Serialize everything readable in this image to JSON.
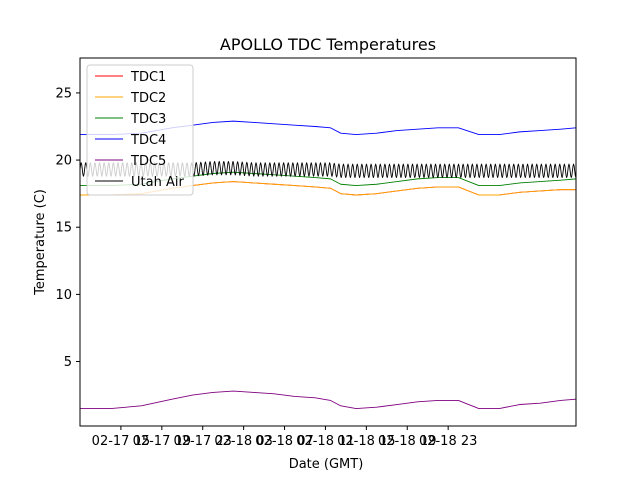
{
  "chart_data": {
    "type": "line",
    "title": "APOLLO TDC Temperatures",
    "xlabel": "Date (GMT)",
    "ylabel": "Temperature (C)",
    "xlim": [
      11.0,
      59.5
    ],
    "ylim": [
      0.2,
      27.6
    ],
    "x_unit": "hours since 02-17 00:00 GMT",
    "x_ticks": [
      {
        "value": 15,
        "label": "02-17 15"
      },
      {
        "value": 19,
        "label": "02-17 19"
      },
      {
        "value": 23,
        "label": "02-17 23"
      },
      {
        "value": 27,
        "label": "02-18 03"
      },
      {
        "value": 31,
        "label": "02-18 07"
      },
      {
        "value": 35,
        "label": "02-18 11"
      },
      {
        "value": 39,
        "label": "02-18 15"
      },
      {
        "value": 43,
        "label": "02-18 19"
      },
      {
        "value": 47,
        "label": "02-18 23"
      }
    ],
    "y_ticks": [
      {
        "value": 5,
        "label": "5"
      },
      {
        "value": 10,
        "label": "10"
      },
      {
        "value": 15,
        "label": "15"
      },
      {
        "value": 20,
        "label": "20"
      },
      {
        "value": 25,
        "label": "25"
      }
    ],
    "grid": false,
    "legend_position": "top-left",
    "series": [
      {
        "name": "TDC1",
        "color": "#ff0000",
        "x": [
          11,
          14,
          17,
          20,
          22,
          24,
          26,
          28,
          30,
          32,
          34,
          35.5,
          36.5,
          38,
          40,
          42,
          44,
          46,
          48,
          50,
          52,
          54,
          56,
          58,
          59.5
        ],
        "y": [
          17.4,
          17.4,
          17.5,
          17.9,
          18.1,
          18.3,
          18.4,
          18.3,
          18.2,
          18.1,
          18.0,
          17.9,
          17.5,
          17.4,
          17.5,
          17.7,
          17.9,
          18.0,
          18.0,
          17.4,
          17.4,
          17.6,
          17.7,
          17.8,
          17.8
        ]
      },
      {
        "name": "TDC2",
        "color": "#ffa500",
        "x": [
          11,
          14,
          17,
          20,
          22,
          24,
          26,
          28,
          30,
          32,
          34,
          35.5,
          36.5,
          38,
          40,
          42,
          44,
          46,
          48,
          50,
          52,
          54,
          56,
          58,
          59.5
        ],
        "y": [
          17.4,
          17.4,
          17.5,
          17.9,
          18.1,
          18.3,
          18.4,
          18.3,
          18.2,
          18.1,
          18.0,
          17.9,
          17.5,
          17.4,
          17.5,
          17.7,
          17.9,
          18.0,
          18.0,
          17.4,
          17.4,
          17.6,
          17.7,
          17.8,
          17.8
        ]
      },
      {
        "name": "TDC3",
        "color": "#008000",
        "x": [
          11,
          14,
          17,
          20,
          22,
          24,
          26,
          28,
          30,
          32,
          34,
          35.5,
          36.5,
          38,
          40,
          42,
          44,
          46,
          48,
          50,
          52,
          54,
          56,
          58,
          59.5
        ],
        "y": [
          18.1,
          18.1,
          18.2,
          18.6,
          18.8,
          19.0,
          19.1,
          19.0,
          18.9,
          18.8,
          18.7,
          18.6,
          18.2,
          18.1,
          18.2,
          18.4,
          18.6,
          18.7,
          18.7,
          18.1,
          18.1,
          18.3,
          18.4,
          18.5,
          18.6
        ]
      },
      {
        "name": "TDC4",
        "color": "#0000ff",
        "x": [
          11,
          14,
          17,
          20,
          22,
          24,
          26,
          28,
          30,
          32,
          34,
          35.5,
          36.5,
          38,
          40,
          42,
          44,
          46,
          48,
          50,
          52,
          54,
          56,
          58,
          59.5
        ],
        "y": [
          21.9,
          21.9,
          22.0,
          22.4,
          22.6,
          22.8,
          22.9,
          22.8,
          22.7,
          22.6,
          22.5,
          22.4,
          22.0,
          21.9,
          22.0,
          22.2,
          22.3,
          22.4,
          22.4,
          21.9,
          21.9,
          22.1,
          22.2,
          22.3,
          22.4
        ]
      },
      {
        "name": "TDC5",
        "color": "#800080",
        "x": [
          11,
          14,
          17,
          20,
          22,
          24,
          26,
          28,
          30,
          32,
          34,
          35.5,
          36.5,
          38,
          40,
          42,
          44,
          46,
          48,
          50,
          52,
          54,
          56,
          58,
          59.5
        ],
        "y": [
          1.5,
          1.5,
          1.7,
          2.2,
          2.5,
          2.7,
          2.8,
          2.7,
          2.6,
          2.4,
          2.3,
          2.1,
          1.7,
          1.5,
          1.6,
          1.8,
          2.0,
          2.1,
          2.1,
          1.5,
          1.5,
          1.8,
          1.9,
          2.1,
          2.2
        ]
      },
      {
        "name": "Utah Air",
        "color": "#000000",
        "x": [
          11,
          14,
          17,
          20,
          22,
          24,
          26,
          28,
          30,
          32,
          34,
          35.5,
          36.5,
          38,
          40,
          42,
          44,
          46,
          48,
          50,
          52,
          54,
          56,
          58,
          59.5
        ],
        "y": [
          19.3,
          19.3,
          19.3,
          19.3,
          19.3,
          19.4,
          19.4,
          19.3,
          19.3,
          19.3,
          19.3,
          19.3,
          19.2,
          19.2,
          19.2,
          19.2,
          19.2,
          19.2,
          19.2,
          19.2,
          19.2,
          19.2,
          19.2,
          19.2,
          19.2
        ],
        "oscillation_amplitude": 0.5,
        "oscillation_period_hours": 0.45
      }
    ]
  }
}
